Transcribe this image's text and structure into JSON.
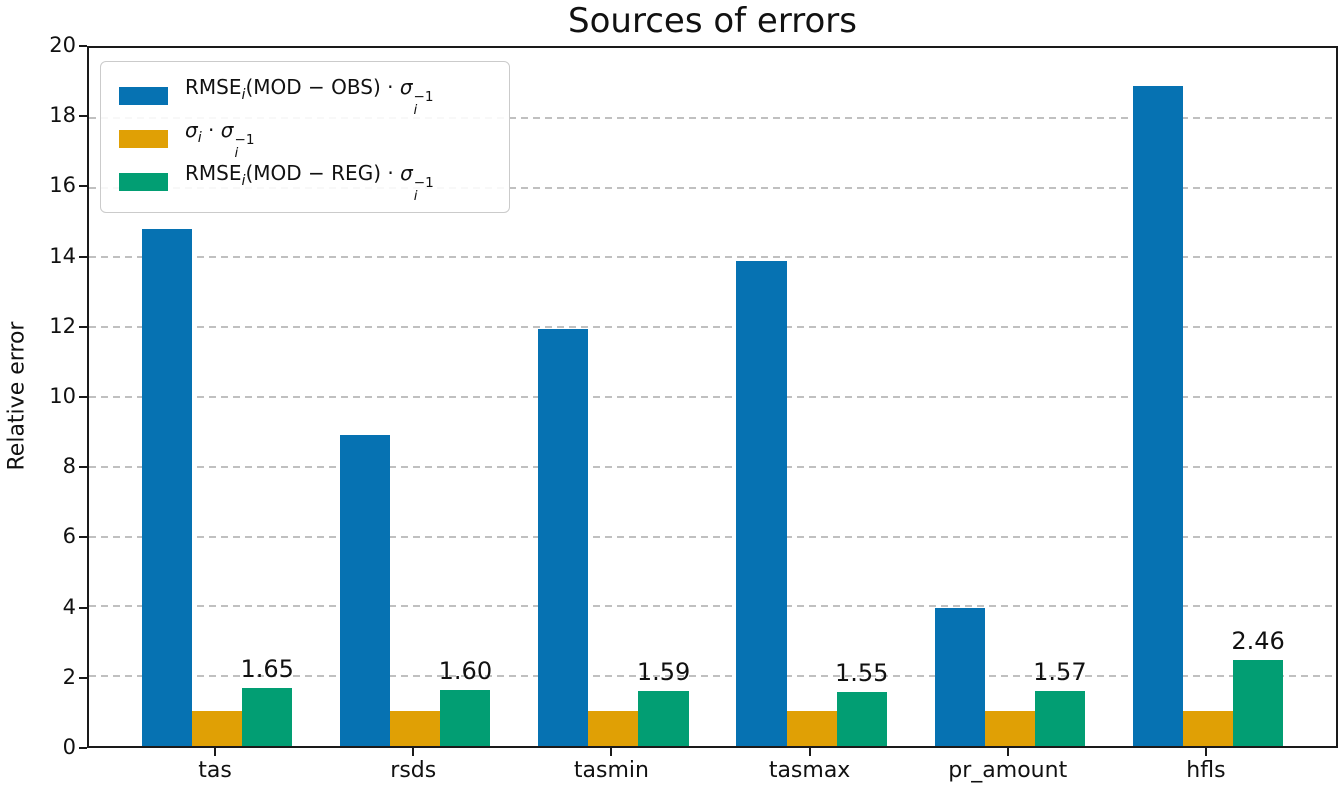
{
  "figure": {
    "background": "#ffffff"
  },
  "chart_data": {
    "type": "bar",
    "title": "Sources of errors",
    "ylabel": "Relative error",
    "xlabel": "",
    "ylim": [
      0,
      20
    ],
    "yticks": [
      0,
      2,
      4,
      6,
      8,
      10,
      12,
      14,
      16,
      18,
      20
    ],
    "grid": "horizontal dashed gridlines at every y tick",
    "legend_position": "upper left",
    "categories": [
      "tas",
      "rsds",
      "tasmin",
      "tasmax",
      "pr_amount",
      "hfls"
    ],
    "series": [
      {
        "name": "RMSE_i(MOD − OBS) · σ_i^−1",
        "math": "RMSE_{i}(MOD − OBS) · $σ$_{i}^{−1}",
        "color": "#0672b2",
        "values": [
          14.8,
          8.9,
          11.95,
          13.9,
          3.95,
          18.9
        ]
      },
      {
        "name": "σ_i · σ_i^−1",
        "math": "$σ$_{i} · $σ$_{i}^{−1}",
        "color": "#e0a005",
        "values": [
          1.0,
          1.0,
          1.0,
          1.0,
          1.0,
          1.0
        ]
      },
      {
        "name": "RMSE_i(MOD − REG) · σ_i^−1",
        "math": "RMSE_{i}(MOD − REG) · $σ$_{i}^{−1}",
        "color": "#029e73",
        "values": [
          1.65,
          1.6,
          1.59,
          1.55,
          1.57,
          2.46
        ],
        "value_labels": [
          "1.65",
          "1.60",
          "1.59",
          "1.55",
          "1.57",
          "2.46"
        ]
      }
    ]
  }
}
